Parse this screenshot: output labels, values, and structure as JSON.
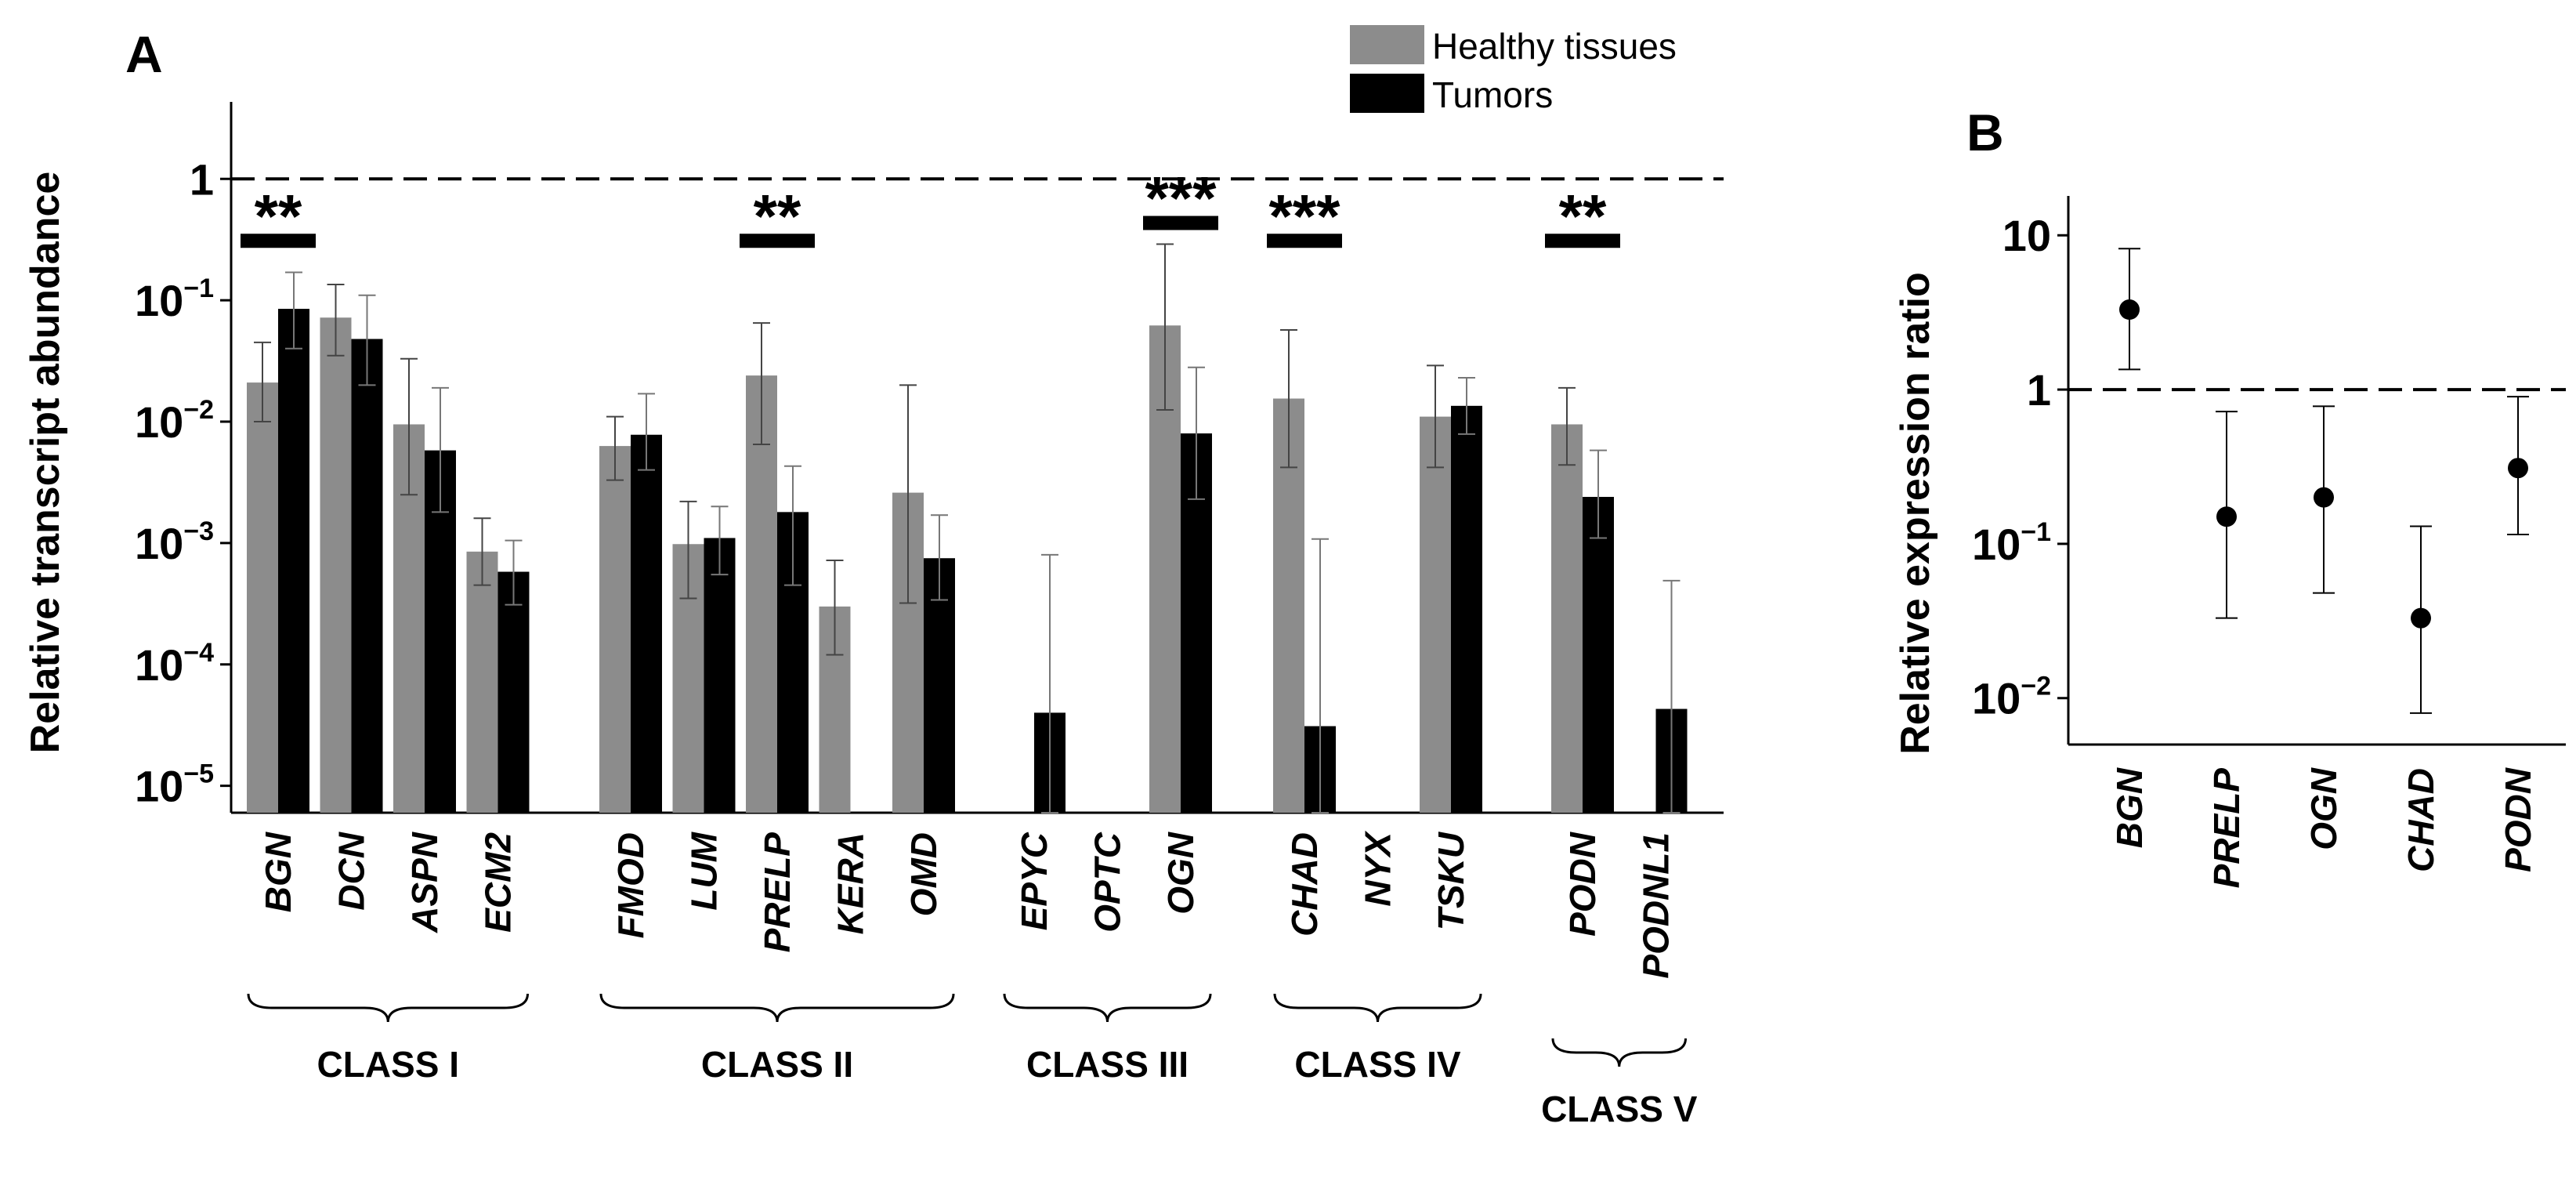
{
  "figure": {
    "panel_a_letter": "A",
    "panel_b_letter": "B"
  },
  "chart_data": [
    {
      "type": "bar",
      "panel": "A",
      "ylabel": "Relative  transcript abundance",
      "yscale": "log",
      "ylim": [
        6e-06,
        5
      ],
      "reference_line": 1,
      "y_tick_values": [
        1,
        0.1,
        0.01,
        0.001,
        0.0001,
        1e-05
      ],
      "y_tick_labels": [
        {
          "base": "1",
          "exp": ""
        },
        {
          "base": "10",
          "exp": "−1"
        },
        {
          "base": "10",
          "exp": "−2"
        },
        {
          "base": "10",
          "exp": "−3"
        },
        {
          "base": "10",
          "exp": "−4"
        },
        {
          "base": "10",
          "exp": "−5"
        }
      ],
      "legend": {
        "position": "top-right",
        "items": [
          {
            "label": "Healthy tissues",
            "color": "#8c8c8c"
          },
          {
            "label": "Tumors",
            "color": "#000000"
          }
        ]
      },
      "groups": [
        {
          "label": "CLASS I",
          "genes": [
            {
              "name": "BGN",
              "healthy": 0.021,
              "healthy_err": [
                0.01,
                0.045
              ],
              "tumor": 0.085,
              "tumor_err": [
                0.04,
                0.17
              ],
              "significance": "**"
            },
            {
              "name": "DCN",
              "healthy": 0.072,
              "healthy_err": [
                0.035,
                0.135
              ],
              "tumor": 0.048,
              "tumor_err": [
                0.02,
                0.11
              ],
              "significance": ""
            },
            {
              "name": "ASPN",
              "healthy": 0.0095,
              "healthy_err": [
                0.0025,
                0.033
              ],
              "tumor": 0.0058,
              "tumor_err": [
                0.0018,
                0.019
              ],
              "significance": ""
            },
            {
              "name": "ECM2",
              "healthy": 0.00085,
              "healthy_err": [
                0.00045,
                0.0016
              ],
              "tumor": 0.00058,
              "tumor_err": [
                0.00031,
                0.00105
              ],
              "significance": ""
            }
          ]
        },
        {
          "label": "CLASS II",
          "genes": [
            {
              "name": "FMOD",
              "healthy": 0.0063,
              "healthy_err": [
                0.0033,
                0.011
              ],
              "tumor": 0.0078,
              "tumor_err": [
                0.004,
                0.017
              ],
              "significance": ""
            },
            {
              "name": "LUM",
              "healthy": 0.00098,
              "healthy_err": [
                0.00035,
                0.0022
              ],
              "tumor": 0.0011,
              "tumor_err": [
                0.00055,
                0.002
              ],
              "significance": ""
            },
            {
              "name": "PRELP",
              "healthy": 0.024,
              "healthy_err": [
                0.0065,
                0.065
              ],
              "tumor": 0.0018,
              "tumor_err": [
                0.00045,
                0.0043
              ],
              "significance": "**"
            },
            {
              "name": "KERA",
              "healthy": 0.0003,
              "healthy_err": [
                0.00012,
                0.00072
              ],
              "tumor": null,
              "tumor_err": null,
              "significance": ""
            },
            {
              "name": "OMD",
              "healthy": 0.0026,
              "healthy_err": [
                0.00032,
                0.02
              ],
              "tumor": 0.00075,
              "tumor_err": [
                0.00034,
                0.0017
              ],
              "significance": ""
            }
          ]
        },
        {
          "label": "CLASS III",
          "genes": [
            {
              "name": "EPYC",
              "healthy": null,
              "healthy_err": null,
              "tumor": 4e-05,
              "tumor_err": [
                6e-06,
                0.0008
              ],
              "significance": ""
            },
            {
              "name": "OPTC",
              "healthy": null,
              "healthy_err": null,
              "tumor": null,
              "tumor_err": null,
              "significance": ""
            },
            {
              "name": "OGN",
              "healthy": 0.062,
              "healthy_err": [
                0.0125,
                0.29
              ],
              "tumor": 0.008,
              "tumor_err": [
                0.0023,
                0.028
              ],
              "significance": "***"
            }
          ]
        },
        {
          "label": "CLASS IV",
          "genes": [
            {
              "name": "CHAD",
              "healthy": 0.0155,
              "healthy_err": [
                0.0042,
                0.057
              ],
              "tumor": 3.1e-05,
              "tumor_err": [
                6e-06,
                0.00108
              ],
              "significance": "***"
            },
            {
              "name": "NYX",
              "healthy": null,
              "healthy_err": null,
              "tumor": null,
              "tumor_err": null,
              "significance": ""
            },
            {
              "name": "TSKU",
              "healthy": 0.011,
              "healthy_err": [
                0.0042,
                0.029
              ],
              "tumor": 0.0135,
              "tumor_err": [
                0.0079,
                0.023
              ],
              "significance": ""
            }
          ]
        },
        {
          "label": "CLASS V",
          "genes": [
            {
              "name": "PODN",
              "healthy": 0.0095,
              "healthy_err": [
                0.0044,
                0.019
              ],
              "tumor": 0.0024,
              "tumor_err": [
                0.0011,
                0.0058
              ],
              "significance": "**"
            },
            {
              "name": "PODNL1",
              "healthy": null,
              "healthy_err": null,
              "tumor": 4.3e-05,
              "tumor_err": [
                6e-06,
                0.00049
              ],
              "significance": ""
            }
          ]
        }
      ]
    },
    {
      "type": "scatter",
      "panel": "B",
      "ylabel": "Relative expression ratio",
      "yscale": "log",
      "ylim": [
        0.005,
        18
      ],
      "reference_line": 1,
      "y_tick_values": [
        10,
        1,
        0.1,
        0.01
      ],
      "y_tick_labels": [
        {
          "base": "10",
          "exp": ""
        },
        {
          "base": "1",
          "exp": ""
        },
        {
          "base": "10",
          "exp": "−1"
        },
        {
          "base": "10",
          "exp": "−2"
        }
      ],
      "points": [
        {
          "name": "BGN",
          "value": 3.3,
          "err": [
            1.35,
            8.2
          ]
        },
        {
          "name": "PRELP",
          "value": 0.15,
          "err": [
            0.033,
            0.72
          ]
        },
        {
          "name": "OGN",
          "value": 0.2,
          "err": [
            0.048,
            0.78
          ]
        },
        {
          "name": "CHAD",
          "value": 0.033,
          "err": [
            0.008,
            0.13
          ]
        },
        {
          "name": "PODN",
          "value": 0.31,
          "err": [
            0.115,
            0.9
          ]
        }
      ]
    }
  ]
}
